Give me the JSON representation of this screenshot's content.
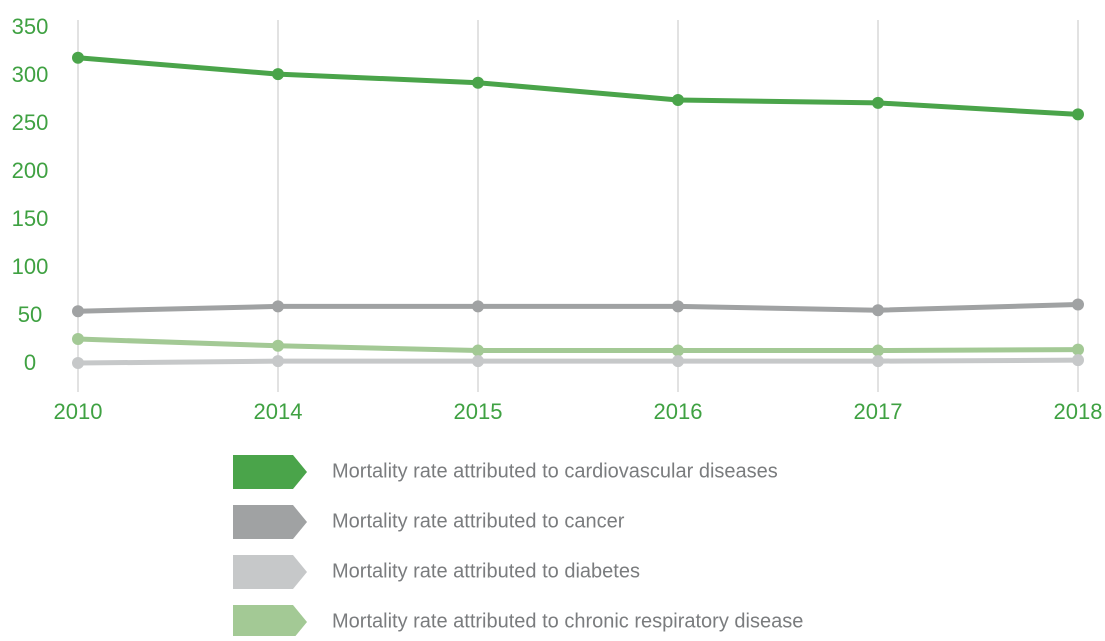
{
  "chart_data": {
    "type": "line",
    "categories": [
      "2010",
      "2014",
      "2015",
      "2016",
      "2017",
      "2018"
    ],
    "series": [
      {
        "name": "Mortality rate attributed to cardiovascular diseases",
        "color": "#4aa44a",
        "values": [
          319,
          302,
          293,
          275,
          272,
          260
        ]
      },
      {
        "name": "Mortality rate attributed to cancer",
        "color": "#a0a2a3",
        "values": [
          55,
          60,
          60,
          60,
          56,
          62
        ]
      },
      {
        "name": "Mortality rate attributed to diabetes",
        "color": "#c6c8c9",
        "values": [
          1,
          3,
          3,
          3,
          3,
          4
        ]
      },
      {
        "name": "Mortality rate attributed to chronic respiratory disease",
        "color": "#a3c995",
        "values": [
          26,
          19,
          14,
          14,
          14,
          15
        ]
      }
    ],
    "ylim": [
      0,
      350
    ],
    "yticks": [
      0,
      50,
      100,
      150,
      200,
      250,
      300,
      350
    ]
  }
}
